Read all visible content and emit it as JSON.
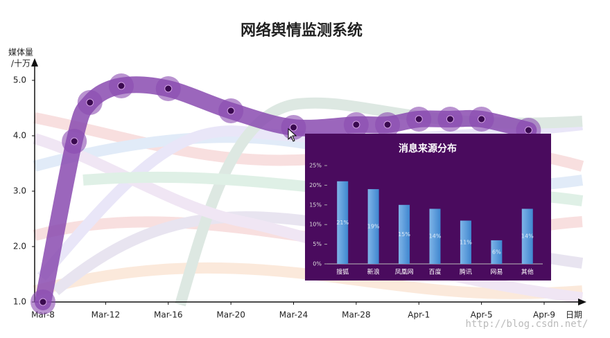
{
  "chart_data": [
    {
      "type": "line",
      "title": "网络舆情监测系统",
      "y_label": [
        "媒体量",
        "/十万"
      ],
      "x_label": "日期",
      "x": [
        "Mar-8",
        "Mar-10",
        "Mar-11",
        "Mar-13",
        "Mar-16",
        "Mar-20",
        "Mar-24",
        "Mar-28",
        "Mar-30",
        "Apr-1",
        "Apr-3",
        "Apr-5",
        "Apr-8"
      ],
      "series": [
        {
          "color": "#8a4bb0",
          "values": [
            1.0,
            3.9,
            4.6,
            4.9,
            4.85,
            4.45,
            4.15,
            4.2,
            4.2,
            4.3,
            4.3,
            4.3,
            4.1
          ]
        }
      ],
      "xticks": [
        "Mar-8",
        "Mar-12",
        "Mar-16",
        "Mar-20",
        "Mar-24",
        "Mar-28",
        "Apr-1",
        "Apr-5",
        "Apr-9"
      ],
      "ylim": [
        1,
        5
      ],
      "yticks": [
        {
          "value": 1,
          "label": "1.0"
        },
        {
          "value": 2,
          "label": "2.0"
        },
        {
          "value": 3,
          "label": "3.0"
        },
        {
          "value": 4,
          "label": "4.0"
        },
        {
          "value": 5,
          "label": "5.0"
        }
      ]
    },
    {
      "type": "bar",
      "title": "消息来源分布",
      "categories": [
        "搜狐",
        "新浪",
        "凤凰网",
        "百度",
        "腾讯",
        "网易",
        "其他"
      ],
      "values": [
        21,
        19,
        15,
        14,
        11,
        6,
        14
      ],
      "value_labels": [
        "21%",
        "19%",
        "15%",
        "14%",
        "11%",
        "6%",
        "14%"
      ],
      "color": "#5b9bd5",
      "ylim": [
        0,
        25
      ],
      "yticks": [
        {
          "value": 0,
          "label": "0%"
        },
        {
          "value": 5,
          "label": "5%"
        },
        {
          "value": 10,
          "label": "10%"
        },
        {
          "value": 15,
          "label": "15%"
        },
        {
          "value": 20,
          "label": "20%"
        },
        {
          "value": 25,
          "label": "25%"
        }
      ]
    }
  ],
  "watermark": "http://blog.csdn.net/"
}
